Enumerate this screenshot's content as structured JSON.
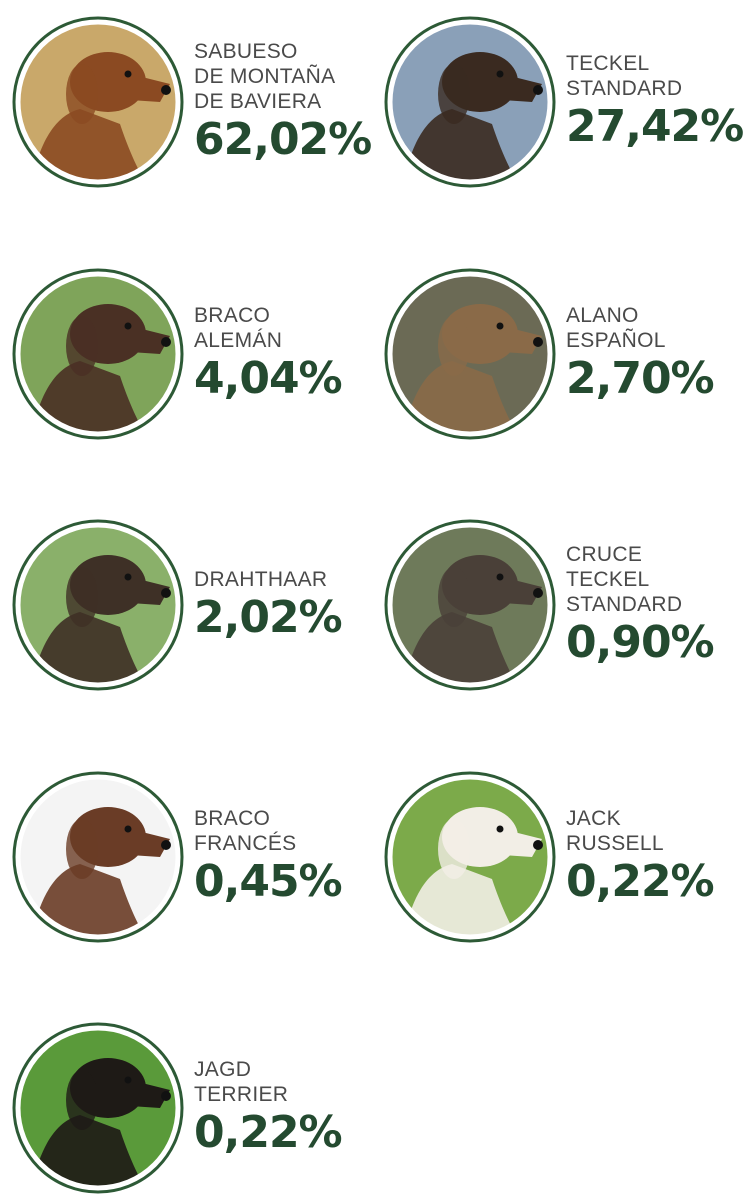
{
  "items": [
    {
      "name": [
        "SABUESO",
        "DE MONTAÑA",
        "DE BAVIERA"
      ],
      "value": "62,02%"
    },
    {
      "name": [
        "TECKEL",
        "STANDARD"
      ],
      "value": "27,42%"
    },
    {
      "name": [
        "BRACO",
        "ALEMÁN"
      ],
      "value": "4,04%"
    },
    {
      "name": [
        "ALANO",
        "ESPAÑOL"
      ],
      "value": "2,70%"
    },
    {
      "name": [
        "DRAHTHAAR"
      ],
      "value": "2,02%"
    },
    {
      "name": [
        "CRUCE",
        "TECKEL",
        "STANDARD"
      ],
      "value": "0,90%"
    },
    {
      "name": [
        "BRACO",
        "FRANCÉS"
      ],
      "value": "0,45%"
    },
    {
      "name": [
        "JACK",
        "RUSSELL"
      ],
      "value": "0,22%"
    },
    {
      "name": [
        "JAGD",
        "TERRIER"
      ],
      "value": "0,22%"
    }
  ]
}
